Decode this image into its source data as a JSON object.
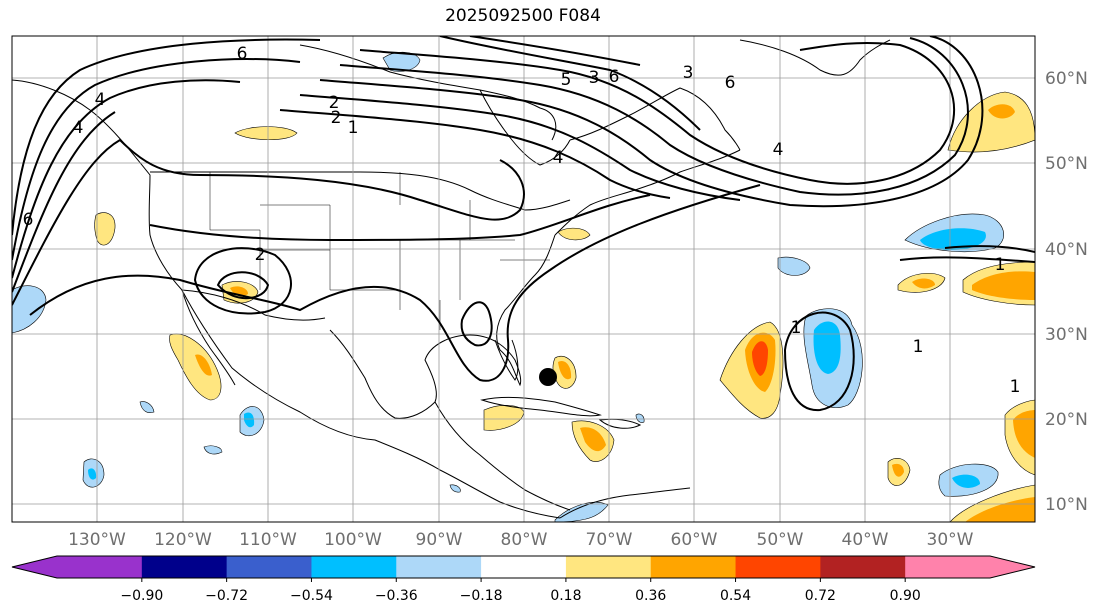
{
  "title": "2025092500 F084",
  "lat_labels": [
    "60°N",
    "50°N",
    "40°N",
    "30°N",
    "20°N",
    "10°N"
  ],
  "lon_labels": [
    "130°W",
    "120°W",
    "110°W",
    "100°W",
    "90°W",
    "80°W",
    "70°W",
    "60°W",
    "50°W",
    "40°W",
    "30°W"
  ],
  "colorbar": {
    "colors": [
      "#9932cc",
      "#00008b",
      "#3a5fcd",
      "#00bfff",
      "#add8f8",
      "#ffffff",
      "#ffe680",
      "#ffa500",
      "#ff4500",
      "#b22222",
      "#ff82ab"
    ],
    "under_color": "#9932cc",
    "over_color": "#ff82ab",
    "tick_labels": [
      "−0.90",
      "−0.72",
      "−0.54",
      "−0.36",
      "−0.18",
      "0.18",
      "0.36",
      "0.54",
      "0.72",
      "0.90"
    ]
  },
  "contour_labels": [
    "6",
    "6",
    "5",
    "3",
    "6",
    "3",
    "2",
    "2",
    "1",
    "4",
    "4",
    "4",
    "2",
    "1",
    "1",
    "1",
    "1",
    "6",
    "4"
  ]
}
